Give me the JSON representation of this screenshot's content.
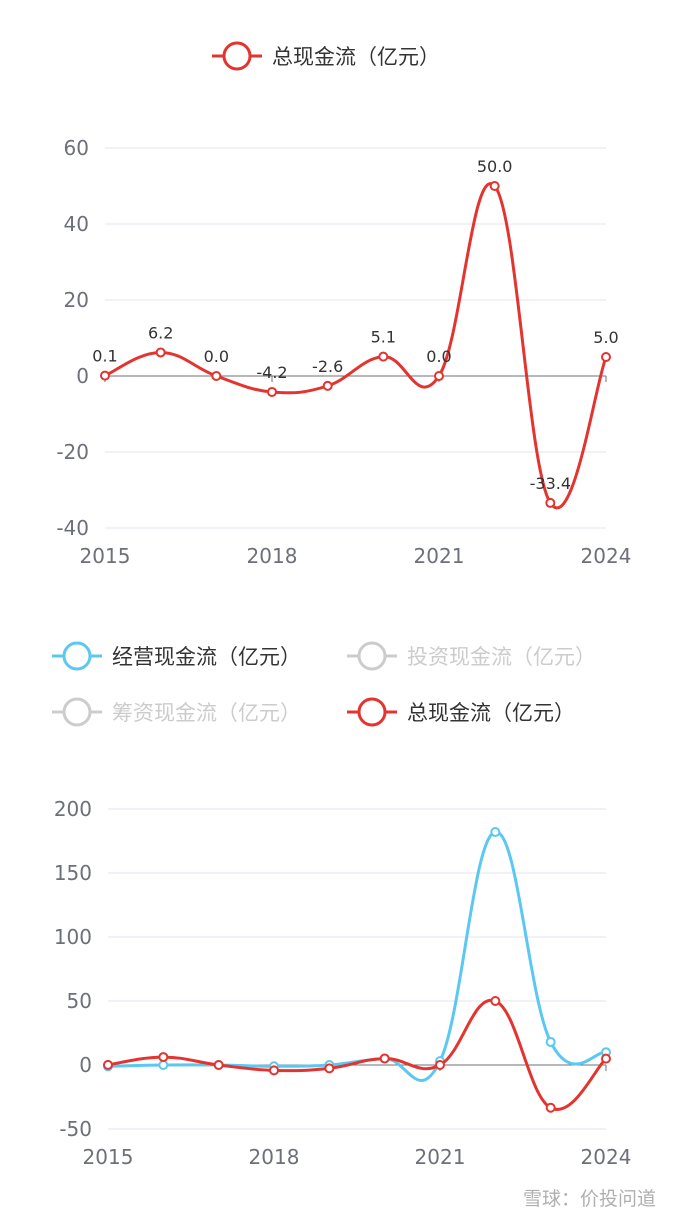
{
  "chart_data": [
    {
      "type": "line",
      "legend": [
        {
          "label": "总现金流（亿元）",
          "color": "#e3342f",
          "active": true
        }
      ],
      "x": [
        "2015",
        "2016",
        "2017",
        "2018",
        "2019",
        "2020",
        "2021",
        "2022",
        "2023",
        "2024"
      ],
      "xticks": [
        "2015",
        "2018",
        "2021",
        "2024"
      ],
      "ylim": [
        -40,
        60
      ],
      "yticks": [
        "60",
        "40",
        "20",
        "0",
        "-20",
        "-40"
      ],
      "series": [
        {
          "name": "总现金流（亿元）",
          "color": "#e3342f",
          "values": [
            0.1,
            6.2,
            0.0,
            -4.2,
            -2.6,
            5.1,
            0.0,
            50.0,
            -33.4,
            5.0
          ],
          "labels": [
            "0.1",
            "6.2",
            "0.0",
            "-4.2",
            "-2.6",
            "5.1",
            "0.0",
            "50.0",
            "-33.4",
            "5.0"
          ]
        }
      ],
      "grid": true,
      "legend_position": "top"
    },
    {
      "type": "line",
      "legend": [
        {
          "label": "经营现金流（亿元）",
          "color": "#5bc8f2",
          "active": true
        },
        {
          "label": "投资现金流（亿元）",
          "color": "#cccccc",
          "active": false
        },
        {
          "label": "筹资现金流（亿元）",
          "color": "#cccccc",
          "active": false
        },
        {
          "label": "总现金流（亿元）",
          "color": "#e3342f",
          "active": true
        }
      ],
      "x": [
        "2015",
        "2016",
        "2017",
        "2018",
        "2019",
        "2020",
        "2021",
        "2022",
        "2023",
        "2024"
      ],
      "xticks": [
        "2015",
        "2018",
        "2021",
        "2024"
      ],
      "ylim": [
        -50,
        200
      ],
      "yticks": [
        "200",
        "150",
        "100",
        "50",
        "0",
        "-50"
      ],
      "series": [
        {
          "name": "经营现金流（亿元）",
          "color": "#5bc8f2",
          "values": [
            -1,
            0,
            0,
            -1,
            0,
            5,
            3,
            182,
            18,
            10
          ]
        },
        {
          "name": "总现金流（亿元）",
          "color": "#e3342f",
          "values": [
            0.1,
            6.2,
            0.0,
            -4.2,
            -2.6,
            5.1,
            0.0,
            50.0,
            -33.4,
            5.0
          ]
        }
      ],
      "grid": true,
      "legend_position": "top"
    }
  ],
  "watermark": "雪球：价投问道"
}
